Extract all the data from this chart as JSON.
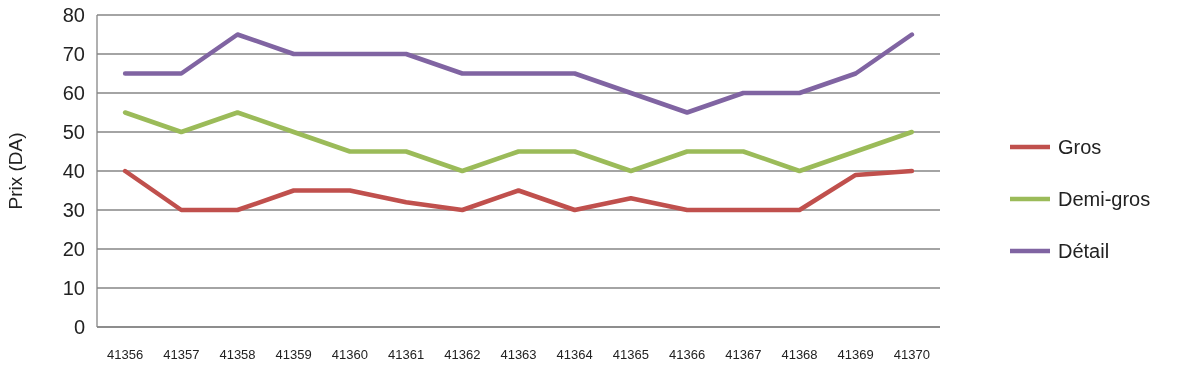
{
  "chart_data": {
    "type": "line",
    "ylabel": "Prix (DA)",
    "categories": [
      "41356",
      "41357",
      "41358",
      "41359",
      "41360",
      "41361",
      "41362",
      "41363",
      "41364",
      "41365",
      "41366",
      "41367",
      "41368",
      "41369",
      "41370"
    ],
    "series": [
      {
        "name": "Gros",
        "color": "#c0504d",
        "values": [
          40,
          30,
          30,
          35,
          35,
          32,
          30,
          35,
          30,
          33,
          30,
          30,
          30,
          39,
          40
        ]
      },
      {
        "name": "Demi-gros",
        "color": "#9bbb59",
        "values": [
          55,
          50,
          55,
          50,
          45,
          45,
          40,
          45,
          45,
          40,
          45,
          45,
          40,
          45,
          50
        ]
      },
      {
        "name": "Détail",
        "color": "#8064a2",
        "values": [
          65,
          65,
          75,
          70,
          70,
          70,
          65,
          65,
          65,
          60,
          55,
          60,
          60,
          65,
          75
        ]
      }
    ],
    "ylim": [
      0,
      80
    ],
    "yticks": [
      0,
      10,
      20,
      30,
      40,
      50,
      60,
      70,
      80
    ],
    "grid": "y",
    "legend": "right",
    "marker": "none",
    "line_style": "solid"
  }
}
